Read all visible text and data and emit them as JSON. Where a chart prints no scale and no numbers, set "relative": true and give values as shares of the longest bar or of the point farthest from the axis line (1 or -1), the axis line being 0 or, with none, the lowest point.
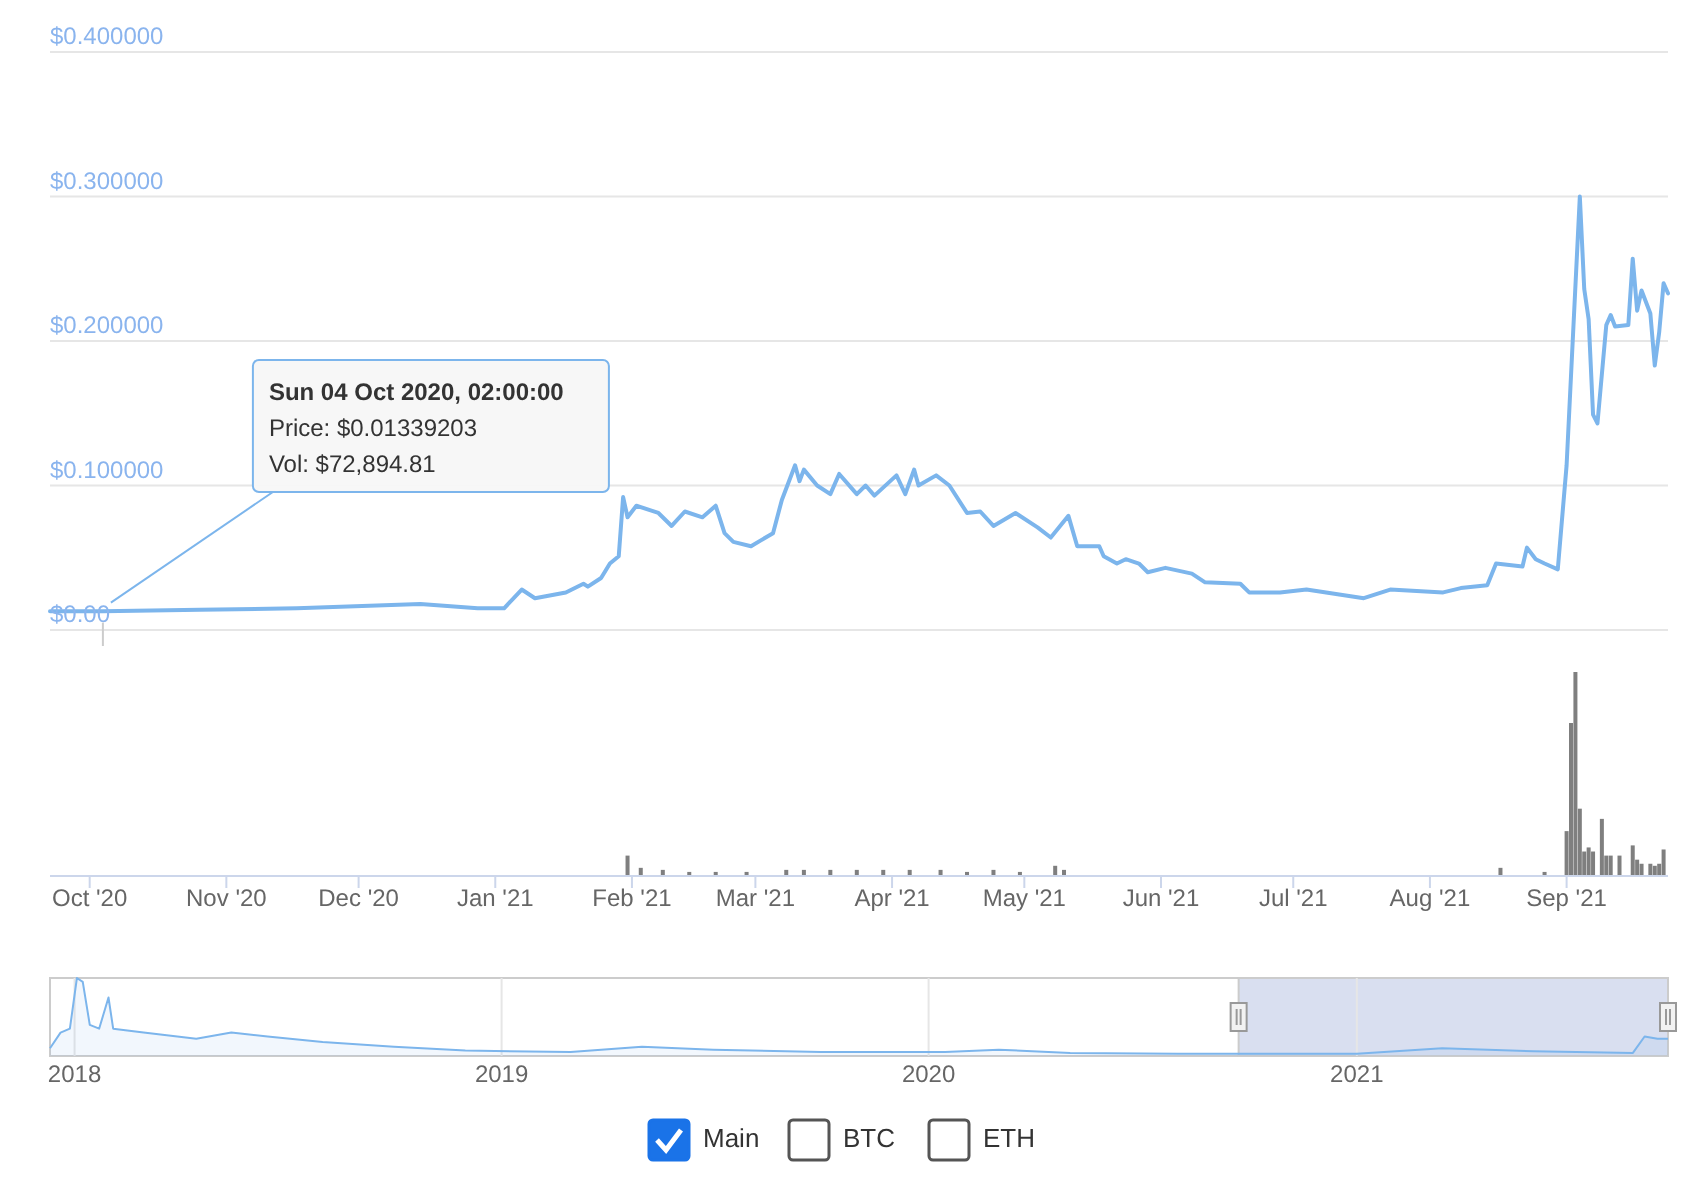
{
  "chart_data": [
    {
      "type": "line",
      "xlim": [
        "2020-09-22",
        "2021-09-24"
      ],
      "ylim": [
        0,
        0.4
      ],
      "yticks": [
        {
          "value": 0,
          "label": "$0.00"
        },
        {
          "value": 0.1,
          "label": "$0.100000"
        },
        {
          "value": 0.2,
          "label": "$0.200000"
        },
        {
          "value": 0.3,
          "label": "$0.300000"
        },
        {
          "value": 0.4,
          "label": "$0.400000"
        }
      ],
      "grid": "y",
      "tick_labels": "y",
      "annotations": [
        {
          "text": "Sun 04 Oct 2020, 02:00:00\nPrice: $0.01339203\nVol: $72,894.81",
          "x": "2020-10-04",
          "y": 0.01339203
        }
      ],
      "series": [
        {
          "color": "#7cb5ec",
          "x": [
            "2020-09-22",
            "2020-10-04",
            "2020-10-26",
            "2020-11-17",
            "2020-12-15",
            "2020-12-28",
            "2021-01-03",
            "2021-01-07",
            "2021-01-10",
            "2021-01-17",
            "2021-01-21",
            "2021-01-22",
            "2021-01-25",
            "2021-01-27",
            "2021-01-29",
            "2021-01-30",
            "2021-01-31",
            "2021-02-02",
            "2021-02-07",
            "2021-02-10",
            "2021-02-13",
            "2021-02-17",
            "2021-02-20",
            "2021-02-22",
            "2021-02-24",
            "2021-02-28",
            "2021-03-05",
            "2021-03-07",
            "2021-03-10",
            "2021-03-11",
            "2021-03-12",
            "2021-03-15",
            "2021-03-18",
            "2021-03-20",
            "2021-03-24",
            "2021-03-26",
            "2021-03-28",
            "2021-04-02",
            "2021-04-04",
            "2021-04-06",
            "2021-04-07",
            "2021-04-11",
            "2021-04-14",
            "2021-04-18",
            "2021-04-21",
            "2021-04-24",
            "2021-04-29",
            "2021-05-04",
            "2021-05-07",
            "2021-05-11",
            "2021-05-13",
            "2021-05-18",
            "2021-05-19",
            "2021-05-22",
            "2021-05-24",
            "2021-05-27",
            "2021-05-29",
            "2021-06-02",
            "2021-06-08",
            "2021-06-11",
            "2021-06-19",
            "2021-06-21",
            "2021-06-28",
            "2021-07-04",
            "2021-07-17",
            "2021-07-23",
            "2021-08-04",
            "2021-08-08",
            "2021-08-14",
            "2021-08-16",
            "2021-08-22",
            "2021-08-23",
            "2021-08-25",
            "2021-08-27",
            "2021-08-30",
            "2021-09-01",
            "2021-09-04",
            "2021-09-05",
            "2021-09-06",
            "2021-09-07",
            "2021-09-08",
            "2021-09-10",
            "2021-09-11",
            "2021-09-12",
            "2021-09-15",
            "2021-09-16",
            "2021-09-17",
            "2021-09-18",
            "2021-09-20",
            "2021-09-21",
            "2021-09-22",
            "2021-09-23",
            "2021-09-24"
          ],
          "values": [
            0.013,
            0.013,
            0.014,
            0.015,
            0.018,
            0.015,
            0.015,
            0.028,
            0.022,
            0.026,
            0.032,
            0.03,
            0.036,
            0.046,
            0.051,
            0.092,
            0.078,
            0.086,
            0.081,
            0.072,
            0.082,
            0.078,
            0.086,
            0.067,
            0.061,
            0.058,
            0.067,
            0.09,
            0.114,
            0.103,
            0.111,
            0.1,
            0.094,
            0.108,
            0.094,
            0.1,
            0.093,
            0.107,
            0.094,
            0.111,
            0.1,
            0.107,
            0.1,
            0.081,
            0.082,
            0.072,
            0.081,
            0.071,
            0.064,
            0.079,
            0.058,
            0.058,
            0.051,
            0.046,
            0.049,
            0.046,
            0.04,
            0.043,
            0.039,
            0.033,
            0.032,
            0.026,
            0.026,
            0.028,
            0.022,
            0.028,
            0.026,
            0.029,
            0.031,
            0.046,
            0.044,
            0.057,
            0.049,
            0.046,
            0.042,
            0.114,
            0.3,
            0.236,
            0.215,
            0.149,
            0.143,
            0.211,
            0.218,
            0.21,
            0.211,
            0.257,
            0.221,
            0.235,
            0.219,
            0.183,
            0.206,
            0.24,
            0.233
          ]
        }
      ]
    },
    {
      "type": "bar",
      "relative": true,
      "xlim": [
        "2020-09-22",
        "2021-09-24"
      ],
      "xticks": [
        {
          "value": "2020-10-01",
          "label": "Oct '20"
        },
        {
          "value": "2020-11-01",
          "label": "Nov '20"
        },
        {
          "value": "2020-12-01",
          "label": "Dec '20"
        },
        {
          "value": "2021-01-01",
          "label": "Jan '21"
        },
        {
          "value": "2021-02-01",
          "label": "Feb '21"
        },
        {
          "value": "2021-03-01",
          "label": "Mar '21"
        },
        {
          "value": "2021-04-01",
          "label": "Apr '21"
        },
        {
          "value": "2021-05-01",
          "label": "May '21"
        },
        {
          "value": "2021-06-01",
          "label": "Jun '21"
        },
        {
          "value": "2021-07-01",
          "label": "Jul '21"
        },
        {
          "value": "2021-08-01",
          "label": "Aug '21"
        },
        {
          "value": "2021-09-01",
          "label": "Sep '21"
        }
      ],
      "tick_labels": "x",
      "series": [
        {
          "color": "#7f7f7f",
          "x": [
            "2021-01-31",
            "2021-02-03",
            "2021-02-08",
            "2021-02-14",
            "2021-02-20",
            "2021-02-27",
            "2021-03-08",
            "2021-03-12",
            "2021-03-18",
            "2021-03-24",
            "2021-03-30",
            "2021-04-05",
            "2021-04-12",
            "2021-04-18",
            "2021-04-24",
            "2021-04-30",
            "2021-05-08",
            "2021-05-10",
            "2021-08-17",
            "2021-08-27",
            "2021-09-01",
            "2021-09-02",
            "2021-09-03",
            "2021-09-04",
            "2021-09-05",
            "2021-09-06",
            "2021-09-07",
            "2021-09-09",
            "2021-09-10",
            "2021-09-11",
            "2021-09-13",
            "2021-09-16",
            "2021-09-17",
            "2021-09-18",
            "2021-09-20",
            "2021-09-21",
            "2021-09-22",
            "2021-09-23"
          ],
          "values": [
            0.1,
            0.04,
            0.03,
            0.02,
            0.02,
            0.02,
            0.03,
            0.03,
            0.03,
            0.03,
            0.03,
            0.03,
            0.03,
            0.02,
            0.03,
            0.02,
            0.05,
            0.03,
            0.04,
            0.02,
            0.22,
            0.75,
            1,
            0.33,
            0.12,
            0.14,
            0.12,
            0.28,
            0.1,
            0.1,
            0.1,
            0.15,
            0.08,
            0.06,
            0.06,
            0.05,
            0.06,
            0.13
          ]
        }
      ]
    },
    {
      "type": "area",
      "relative": true,
      "xlim": [
        "2017-12-11",
        "2021-09-24"
      ],
      "xticks": [
        {
          "value": "2018-01-01",
          "label": "2018"
        },
        {
          "value": "2019-01-01",
          "label": "2019"
        },
        {
          "value": "2020-01-01",
          "label": "2020"
        },
        {
          "value": "2021-01-01",
          "label": "2021"
        }
      ],
      "tick_labels": "x",
      "grid": "x",
      "bands": [
        {
          "axis": "x",
          "from": "2020-09-22",
          "to": "2021-09-24",
          "color": "#d9dff0"
        }
      ],
      "series": [
        {
          "color": "#7cb5ec",
          "x": [
            "2017-12-11",
            "2017-12-20",
            "2017-12-28",
            "2018-01-03",
            "2018-01-08",
            "2018-01-14",
            "2018-01-22",
            "2018-01-30",
            "2018-02-03",
            "2018-03-01",
            "2018-04-15",
            "2018-05-15",
            "2018-06-15",
            "2018-08-01",
            "2018-10-01",
            "2018-12-01",
            "2019-03-01",
            "2019-05-01",
            "2019-07-01",
            "2019-10-01",
            "2020-01-15",
            "2020-03-01",
            "2020-05-01",
            "2020-08-01",
            "2020-10-01",
            "2021-01-01",
            "2021-03-15",
            "2021-06-01",
            "2021-08-25",
            "2021-09-04",
            "2021-09-15",
            "2021-09-24"
          ],
          "values": [
            0.1,
            0.3,
            0.35,
            1,
            0.95,
            0.4,
            0.35,
            0.75,
            0.35,
            0.3,
            0.22,
            0.3,
            0.25,
            0.18,
            0.12,
            0.07,
            0.05,
            0.12,
            0.08,
            0.05,
            0.05,
            0.08,
            0.04,
            0.03,
            0.03,
            0.03,
            0.1,
            0.06,
            0.04,
            0.25,
            0.22,
            0.22
          ]
        }
      ]
    },
    {
      "type": "other",
      "annotations": [
        "Main",
        "BTC",
        "ETH"
      ]
    }
  ]
}
